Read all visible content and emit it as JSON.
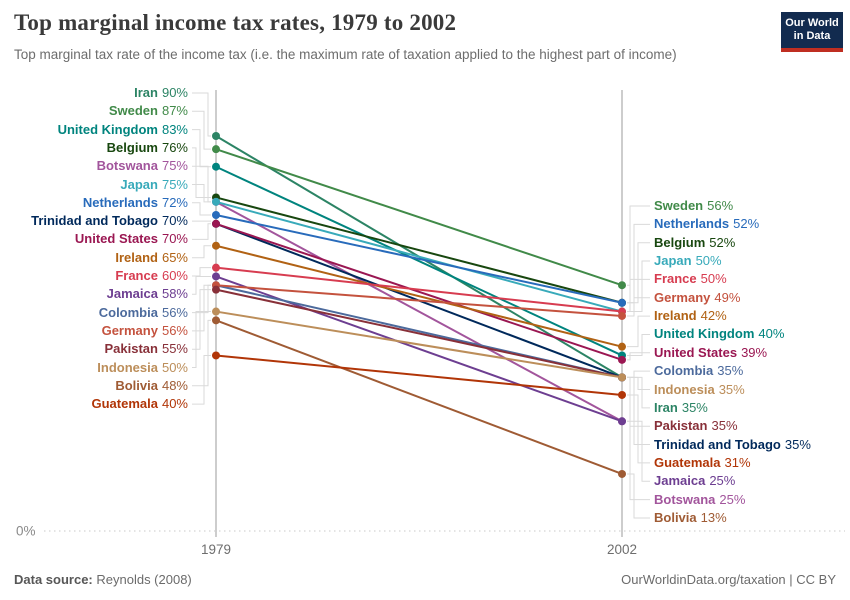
{
  "header": {
    "title": "Top marginal income tax rates, 1979 to 2002",
    "subtitle": "Top marginal tax rate of the income tax (i.e. the maximum rate of taxation applied to the highest part of income)",
    "logo": {
      "line1": "Our World",
      "line2": "in Data"
    }
  },
  "chart_data": {
    "type": "line",
    "variant": "slope",
    "x": [
      1979,
      2002
    ],
    "x_tick_labels": [
      "1979",
      "2002"
    ],
    "y_axis": {
      "min": 0,
      "max": 90,
      "min_label": "0%",
      "unit": "%"
    },
    "grid": "baseline-dotted-only",
    "series": [
      {
        "name": "Iran",
        "values": [
          90,
          35
        ],
        "color": "#2C8465"
      },
      {
        "name": "Sweden",
        "values": [
          87,
          56
        ],
        "color": "#418A49"
      },
      {
        "name": "United Kingdom",
        "values": [
          83,
          40
        ],
        "color": "#00847E"
      },
      {
        "name": "Belgium",
        "values": [
          76,
          52
        ],
        "color": "#18470F"
      },
      {
        "name": "Botswana",
        "values": [
          75,
          25
        ],
        "color": "#A2559C"
      },
      {
        "name": "Japan",
        "values": [
          75,
          50
        ],
        "color": "#38AABA"
      },
      {
        "name": "Netherlands",
        "values": [
          72,
          52
        ],
        "color": "#286BBB"
      },
      {
        "name": "Trinidad and Tobago",
        "values": [
          70,
          35
        ],
        "color": "#00295B"
      },
      {
        "name": "United States",
        "values": [
          70,
          39
        ],
        "color": "#9A1752"
      },
      {
        "name": "Ireland",
        "values": [
          65,
          42
        ],
        "color": "#B16214"
      },
      {
        "name": "France",
        "values": [
          60,
          50
        ],
        "color": "#D73C50"
      },
      {
        "name": "Jamaica",
        "values": [
          58,
          25
        ],
        "color": "#6D3E91"
      },
      {
        "name": "Colombia",
        "values": [
          56,
          35
        ],
        "color": "#4C6A9C"
      },
      {
        "name": "Germany",
        "values": [
          56,
          49
        ],
        "color": "#C4523E"
      },
      {
        "name": "Pakistan",
        "values": [
          55,
          35
        ],
        "color": "#883039"
      },
      {
        "name": "Indonesia",
        "values": [
          50,
          35
        ],
        "color": "#BC8E5A"
      },
      {
        "name": "Bolivia",
        "values": [
          48,
          13
        ],
        "color": "#9F5B34"
      },
      {
        "name": "Guatemala",
        "values": [
          40,
          31
        ],
        "color": "#B13507"
      }
    ],
    "left_label_order": [
      "Iran",
      "Sweden",
      "United Kingdom",
      "Belgium",
      "Botswana",
      "Japan",
      "Netherlands",
      "Trinidad and Tobago",
      "United States",
      "Ireland",
      "France",
      "Jamaica",
      "Colombia",
      "Germany",
      "Pakistan",
      "Indonesia",
      "Bolivia",
      "Guatemala"
    ],
    "right_label_order": [
      "Sweden",
      "Netherlands",
      "Belgium",
      "Japan",
      "France",
      "Germany",
      "Ireland",
      "United Kingdom",
      "United States",
      "Colombia",
      "Indonesia",
      "Iran",
      "Pakistan",
      "Trinidad and Tobago",
      "Guatemala",
      "Jamaica",
      "Botswana",
      "Bolivia"
    ]
  },
  "footer": {
    "source_label": "Data source:",
    "source_value": "Reynolds (2008)",
    "credit": "OurWorldinData.org/taxation | CC BY"
  }
}
